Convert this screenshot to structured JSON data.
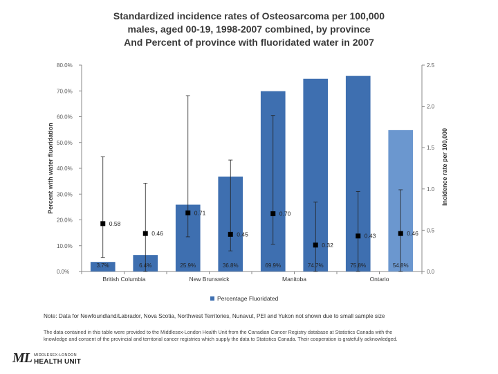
{
  "title": {
    "line1": "Standardized incidence rates of Osteosarcoma per 100,000",
    "line2": "males, aged 00-19, 1998-2007 combined, by province",
    "line3": "And Percent of province with fluoridated water in 2007"
  },
  "chart_data": {
    "type": "bar",
    "categories": [
      "British Columbia",
      "",
      "New Brunswick",
      "",
      "Manitoba",
      "",
      "Ontario",
      ""
    ],
    "category_labels_visible": [
      "British Columbia",
      "New Brunswick",
      "Manitoba",
      "Ontario"
    ],
    "series": [
      {
        "name": "Percentage Fluoridated",
        "axis": "left",
        "values": [
          3.7,
          6.4,
          25.9,
          36.8,
          69.9,
          74.7,
          75.8,
          54.8
        ],
        "labels": [
          "3.7%",
          "6.4%",
          "25.9%",
          "36.8%",
          "69.9%",
          "74.7%",
          "75.8%",
          "54.8%"
        ]
      },
      {
        "name": "Incidence rate per 100,000",
        "axis": "right",
        "type": "scatter",
        "values": [
          0.58,
          0.46,
          0.71,
          0.45,
          0.7,
          0.32,
          0.43,
          0.46
        ],
        "labels": [
          "0.58",
          "0.46",
          "0.71",
          "0.45",
          "0.70",
          "0.32",
          "0.43",
          "0.46"
        ],
        "error_low": [
          0.17,
          0.0,
          0.42,
          0.25,
          0.33,
          0.0,
          0.0,
          0.0
        ],
        "error_high": [
          1.39,
          1.07,
          2.13,
          1.35,
          1.89,
          0.84,
          0.97,
          0.99
        ]
      }
    ],
    "ylabel": "Percent with water fluoridation",
    "y2label": "Incidence rate per 100,000",
    "ylim": [
      0,
      80
    ],
    "y2lim": [
      0,
      2.5
    ],
    "yticks": [
      "0.0%",
      "10.0%",
      "20.0%",
      "30.0%",
      "40.0%",
      "50.0%",
      "60.0%",
      "70.0%",
      "80.0%"
    ],
    "y2ticks": [
      "0.0",
      "0.5",
      "1.0",
      "1.5",
      "2.0",
      "2.5"
    ],
    "legend": "bottom",
    "legend_label": "Percentage Fluoridated",
    "grid": false,
    "colors": {
      "bar": "#3e6fb0",
      "bar_last": "#6b97cf",
      "marker": "#000000",
      "axis": "#888888"
    }
  },
  "note": "Note: Data for Newfoundland/Labrador, Nova Scotia, Northwest Territories, Nunavut, PEI and Yukon not shown due to small sample size",
  "source": {
    "line1": "The data contained in this table were provided to the Middlesex-London Health Unit from the Canadian Cancer Registry database at Statistics Canada with the",
    "line2": "knowledge and consent of the provincial and territorial cancer registries which supply the data to Statistics Canada. Their cooperation is gratefully acknowledged."
  },
  "logo": {
    "mark": "ML",
    "line1": "MIDDLESEX-LONDON",
    "line2": "HEALTH UNIT"
  }
}
